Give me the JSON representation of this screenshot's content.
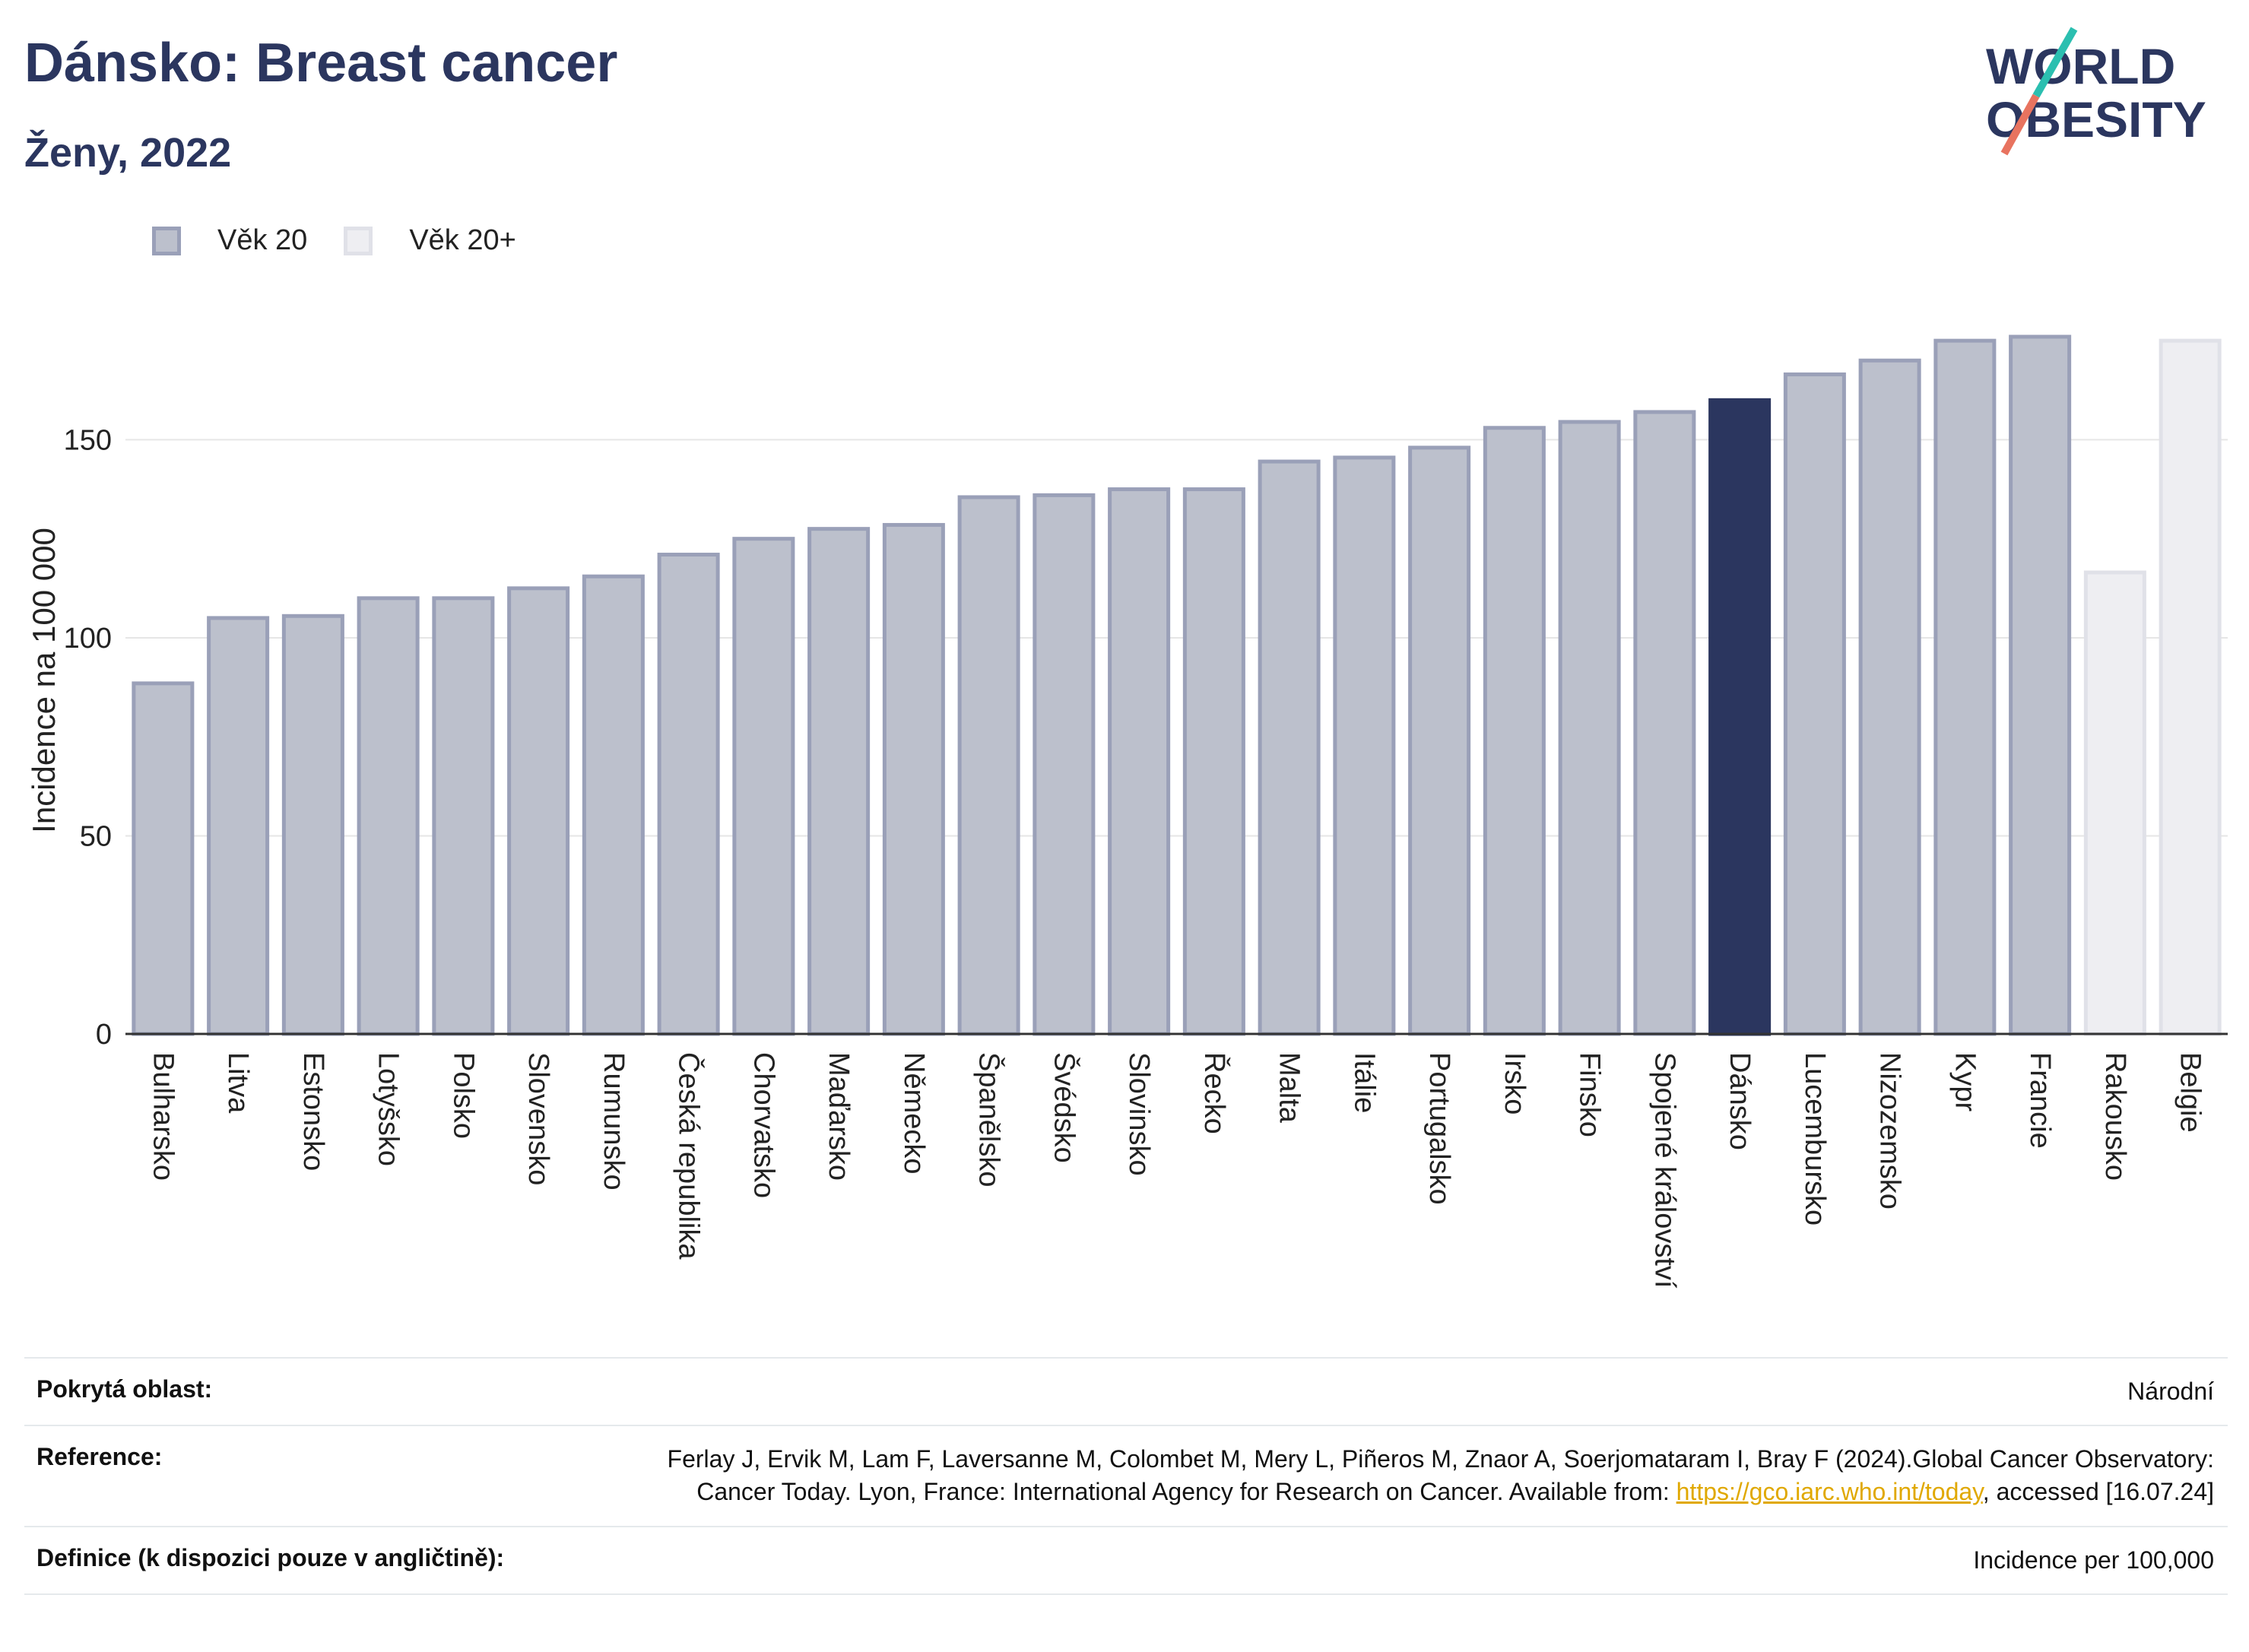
{
  "header": {
    "title": "Dánsko: Breast cancer",
    "subtitle": "Ženy, 2022"
  },
  "logo": {
    "line1": "WORLD",
    "line2": "OBESITY",
    "slash_colors": [
      "#2bbfb0",
      "#e8735f"
    ]
  },
  "colors": {
    "bar": "#bcc0cc",
    "bar_border": "#9aa0b8",
    "highlight": "#2b365f",
    "bar_light": "#eeeef2",
    "bar_light_border": "#e0e1e8",
    "grid": "#e6e6e6"
  },
  "chart_data": {
    "type": "bar",
    "ylabel": "Incidence na 100 000",
    "ylim": [
      0,
      190
    ],
    "yticks": [
      0,
      50,
      100,
      150
    ],
    "legend": [
      {
        "name": "Věk 20",
        "style": "dark"
      },
      {
        "name": "Věk 20+",
        "style": "light"
      }
    ],
    "highlight": "Dánsko",
    "categories": [
      "Bulharsko",
      "Litva",
      "Estonsko",
      "Lotyšsko",
      "Polsko",
      "Slovensko",
      "Rumunsko",
      "Česká republika",
      "Chorvatsko",
      "Maďarsko",
      "Německo",
      "Španělsko",
      "Švédsko",
      "Slovinsko",
      "Řecko",
      "Malta",
      "Itálie",
      "Portugalsko",
      "Irsko",
      "Finsko",
      "Spojené království",
      "Dánsko",
      "Lucembursko",
      "Nizozemsko",
      "Kypr",
      "Francie",
      "Rakousko",
      "Belgie"
    ],
    "values": [
      88.5,
      105,
      105.5,
      110,
      110,
      112.5,
      115.5,
      121,
      125,
      127.5,
      128.5,
      135.5,
      136,
      137.5,
      137.5,
      144.5,
      145.5,
      148,
      153,
      154.5,
      157,
      160,
      166.5,
      170,
      175,
      176,
      116.5,
      175
    ],
    "series_index": [
      0,
      0,
      0,
      0,
      0,
      0,
      0,
      0,
      0,
      0,
      0,
      0,
      0,
      0,
      0,
      0,
      0,
      0,
      0,
      0,
      0,
      0,
      0,
      0,
      0,
      0,
      1,
      1
    ]
  },
  "footer": {
    "rows": [
      {
        "label": "Pokrytá oblast:",
        "value": "Národní"
      },
      {
        "label": "Reference:",
        "value_pre": "Ferlay J, Ervik M, Lam F, Laversanne M, Colombet M, Mery L, Piñeros M, Znaor A, Soerjomataram I, Bray F (2024).Global Cancer Observatory: Cancer Today. Lyon, France: International Agency for Research on Cancer. Available from: ",
        "link": "https://gco.iarc.who.int/today",
        "value_post": ", accessed [16.07.24]"
      },
      {
        "label": "Definice (k dispozici pouze v angličtině):",
        "value": "Incidence per 100,000"
      }
    ]
  }
}
